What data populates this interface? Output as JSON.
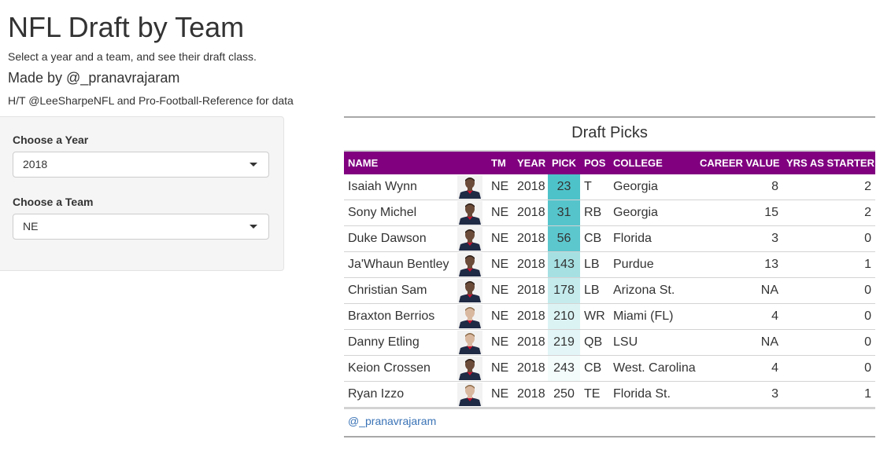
{
  "header": {
    "title": "NFL Draft by Team",
    "subtitle": "Select a year and a team, and see their draft class.",
    "made_by": "Made by @_pranavrajaram",
    "hat_tip": "H/T @LeeSharpeNFL and Pro-Football-Reference for data"
  },
  "controls": {
    "year_label": "Choose a Year",
    "year_value": "2018",
    "team_label": "Choose a Team",
    "team_value": "NE"
  },
  "table": {
    "title": "Draft Picks",
    "columns": [
      "NAME",
      "",
      "TM",
      "YEAR",
      "PICK",
      "POS",
      "COLLEGE",
      "CAREER VALUE",
      "YRS AS STARTER"
    ],
    "rows": [
      {
        "name": "Isaiah Wynn",
        "tm": "NE",
        "year": "2018",
        "pick": "23",
        "pos": "T",
        "college": "Georgia",
        "career_value": "8",
        "yrs_starter": "2",
        "pick_color": "#4ec2c9",
        "skin": "dark"
      },
      {
        "name": "Sony Michel",
        "tm": "NE",
        "year": "2018",
        "pick": "31",
        "pos": "RB",
        "college": "Georgia",
        "career_value": "15",
        "yrs_starter": "2",
        "pick_color": "#55c4cb",
        "skin": "dark"
      },
      {
        "name": "Duke Dawson",
        "tm": "NE",
        "year": "2018",
        "pick": "56",
        "pos": "CB",
        "college": "Florida",
        "career_value": "3",
        "yrs_starter": "0",
        "pick_color": "#5dc7ce",
        "skin": "dark"
      },
      {
        "name": "Ja'Whaun Bentley",
        "tm": "NE",
        "year": "2018",
        "pick": "143",
        "pos": "LB",
        "college": "Purdue",
        "career_value": "13",
        "yrs_starter": "1",
        "pick_color": "#a6e0e3",
        "skin": "dark"
      },
      {
        "name": "Christian Sam",
        "tm": "NE",
        "year": "2018",
        "pick": "178",
        "pos": "LB",
        "college": "Arizona St.",
        "career_value": "NA",
        "yrs_starter": "0",
        "pick_color": "#c5ebed",
        "skin": "dark"
      },
      {
        "name": "Braxton Berrios",
        "tm": "NE",
        "year": "2018",
        "pick": "210",
        "pos": "WR",
        "college": "Miami (FL)",
        "career_value": "4",
        "yrs_starter": "0",
        "pick_color": "#dcf3f4",
        "skin": "light"
      },
      {
        "name": "Danny Etling",
        "tm": "NE",
        "year": "2018",
        "pick": "219",
        "pos": "QB",
        "college": "LSU",
        "career_value": "NA",
        "yrs_starter": "0",
        "pick_color": "#e3f5f6",
        "skin": "light"
      },
      {
        "name": "Keion Crossen",
        "tm": "NE",
        "year": "2018",
        "pick": "243",
        "pos": "CB",
        "college": "West. Carolina",
        "career_value": "4",
        "yrs_starter": "0",
        "pick_color": "#f3fbfb",
        "skin": "dark"
      },
      {
        "name": "Ryan Izzo",
        "tm": "NE",
        "year": "2018",
        "pick": "250",
        "pos": "TE",
        "college": "Florida St.",
        "career_value": "3",
        "yrs_starter": "1",
        "pick_color": "#ffffff",
        "skin": "light"
      }
    ]
  },
  "footer": {
    "credit": "@_pranavrajaram"
  },
  "colors": {
    "header_bg": "#800080",
    "link": "#3a73b6"
  },
  "icons": {
    "headshot": "player-headshot-icon",
    "select_caret": "chevron-down-icon"
  }
}
